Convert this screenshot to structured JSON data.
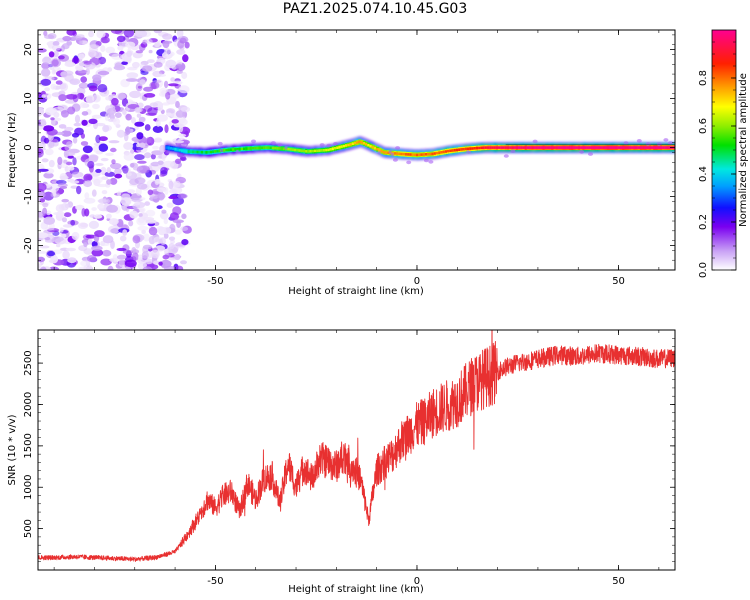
{
  "title": "PAZ1.2025.074.10.45.G03",
  "chart_data": [
    {
      "type": "heatmap",
      "xlabel": "Height of straight line (km)",
      "ylabel": "Frequency (Hz)",
      "xlim": [
        -94,
        64
      ],
      "ylim": [
        -25,
        24
      ],
      "x_ticks": [
        -50,
        0,
        50
      ],
      "x_tick_labels": [
        "-50",
        "0",
        "50"
      ],
      "y_ticks": [
        -20,
        -10,
        0,
        10,
        20
      ],
      "y_tick_labels": [
        "-20",
        "-10",
        "0",
        "10",
        "20"
      ],
      "colorbar": {
        "label": "Normalized spectral amplitude",
        "range": [
          0,
          1
        ],
        "ticks": [
          0.0,
          0.2,
          0.4,
          0.6,
          0.8
        ],
        "tick_labels": [
          "0.0",
          "0.2",
          "0.4",
          "0.6",
          "0.8"
        ]
      },
      "noise_region": {
        "x_range": [
          -94,
          -60
        ],
        "y_range": [
          -25,
          24
        ],
        "amplitude_range": [
          0.02,
          0.15
        ]
      },
      "ridge": {
        "x": [
          -62,
          -57,
          -52,
          -47,
          -42,
          -37,
          -32,
          -27,
          -22,
          -17,
          -14,
          -12,
          -8,
          -4,
          0,
          4,
          8,
          12,
          17,
          22,
          30,
          40,
          50,
          64
        ],
        "frequency": [
          0.0,
          -0.8,
          -1.0,
          -0.5,
          -0.2,
          0.0,
          -0.3,
          -0.8,
          -0.5,
          0.5,
          1.2,
          0.5,
          -1.0,
          -1.3,
          -1.5,
          -1.3,
          -0.7,
          -0.3,
          0.0,
          0.0,
          0.0,
          0.0,
          0.0,
          0.0
        ],
        "amplitude": [
          0.35,
          0.45,
          0.5,
          0.55,
          0.55,
          0.55,
          0.6,
          0.6,
          0.65,
          0.7,
          0.75,
          0.7,
          0.75,
          0.8,
          0.8,
          0.8,
          0.85,
          0.85,
          0.9,
          0.95,
          1.0,
          1.0,
          1.0,
          1.0
        ]
      }
    },
    {
      "type": "line",
      "xlabel": "Height of straight line (km)",
      "ylabel": "SNR (10 * v/v)",
      "xlim": [
        -94,
        64
      ],
      "ylim": [
        0,
        2900
      ],
      "x_ticks": [
        -50,
        0,
        50
      ],
      "x_tick_labels": [
        "-50",
        "0",
        "50"
      ],
      "y_ticks": [
        500,
        1000,
        1500,
        2000,
        2500
      ],
      "y_tick_labels": [
        "500",
        "1000",
        "1500",
        "2000",
        "2500"
      ],
      "series": [
        {
          "color": "#e83030",
          "x": [
            -94,
            -90,
            -85,
            -80,
            -75,
            -70,
            -65,
            -60,
            -58,
            -56,
            -54,
            -52,
            -50,
            -48,
            -46,
            -44,
            -42,
            -40,
            -38,
            -36,
            -34,
            -32,
            -30,
            -28,
            -26,
            -24,
            -22,
            -20,
            -18,
            -16,
            -14,
            -12,
            -10,
            -8,
            -6,
            -4,
            -2,
            0,
            2,
            4,
            6,
            8,
            10,
            12,
            14,
            16,
            18,
            20,
            22,
            25,
            30,
            35,
            40,
            45,
            50,
            55,
            60,
            64
          ],
          "y": [
            150,
            150,
            160,
            150,
            140,
            130,
            150,
            220,
            350,
            500,
            650,
            850,
            750,
            900,
            950,
            700,
            1050,
            850,
            1100,
            1150,
            800,
            1300,
            1000,
            1250,
            1100,
            1350,
            1300,
            1250,
            1400,
            1250,
            1100,
            600,
            1200,
            1300,
            1400,
            1550,
            1650,
            1750,
            1800,
            1900,
            1950,
            2000,
            2050,
            2150,
            2250,
            2300,
            2350,
            2400,
            2450,
            2500,
            2550,
            2600,
            2580,
            2620,
            2600,
            2580,
            2550,
            2560
          ]
        }
      ]
    }
  ]
}
